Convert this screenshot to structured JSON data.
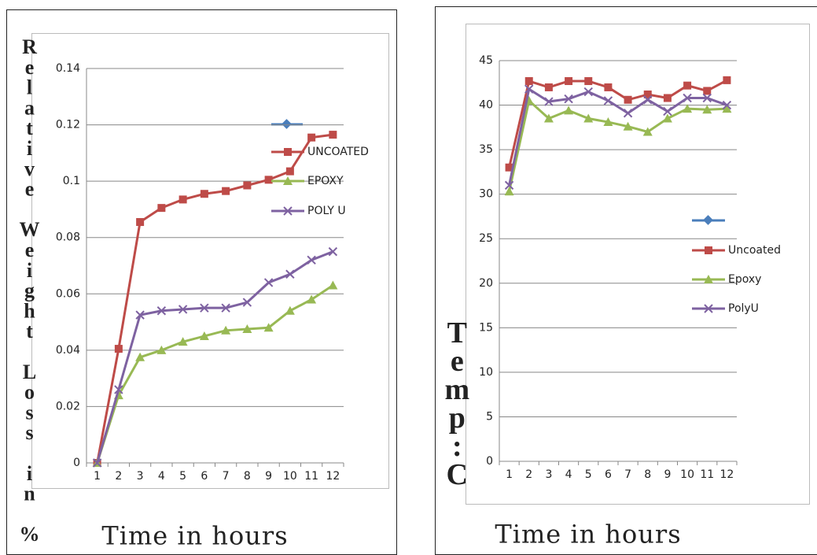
{
  "chart_data": [
    {
      "type": "line",
      "y_label": "Relative Weight Loss in %",
      "x_label": "Time in hours",
      "categories": [
        "1",
        "2",
        "3",
        "4",
        "5",
        "6",
        "7",
        "8",
        "9",
        "10",
        "11",
        "12"
      ],
      "ylim": [
        0,
        0.14
      ],
      "yticks": [
        0,
        0.02,
        0.04,
        0.06,
        0.08,
        0.1,
        0.12,
        0.14
      ],
      "grid": true,
      "series": [
        {
          "name": "UNCOATED",
          "color": "#be4b48",
          "marker": "square",
          "values": [
            0,
            0.0405,
            0.0855,
            0.0905,
            0.0935,
            0.0955,
            0.0965,
            0.0985,
            0.1005,
            0.1035,
            0.1155,
            0.1165
          ]
        },
        {
          "name": "EPOXY",
          "color": "#98b954",
          "marker": "triangle",
          "values": [
            0,
            0.024,
            0.0375,
            0.04,
            0.043,
            0.045,
            0.047,
            0.0475,
            0.048,
            0.054,
            0.058,
            0.063
          ]
        },
        {
          "name": "POLY U",
          "color": "#7e62a1",
          "marker": "x",
          "values": [
            0,
            0.026,
            0.0525,
            0.054,
            0.0545,
            0.055,
            0.055,
            0.057,
            0.064,
            0.067,
            0.072,
            0.075
          ]
        }
      ]
    },
    {
      "type": "line",
      "y_label": "Temp:C",
      "x_label": "Time in hours",
      "categories": [
        "1",
        "2",
        "3",
        "4",
        "5",
        "6",
        "7",
        "8",
        "9",
        "10",
        "11",
        "12"
      ],
      "ylim": [
        0,
        45
      ],
      "yticks": [
        0,
        5,
        10,
        15,
        20,
        25,
        30,
        35,
        40,
        45
      ],
      "grid": true,
      "series": [
        {
          "name": "Uncoated",
          "color": "#be4b48",
          "marker": "square",
          "values": [
            33,
            42.7,
            42,
            42.7,
            42.7,
            42,
            40.6,
            41.2,
            40.8,
            42.2,
            41.6,
            42.8
          ]
        },
        {
          "name": "Epoxy",
          "color": "#98b954",
          "marker": "triangle",
          "values": [
            30.3,
            40.5,
            38.5,
            39.4,
            38.5,
            38.1,
            37.6,
            37,
            38.5,
            39.6,
            39.5,
            39.6
          ]
        },
        {
          "name": "PolyU",
          "color": "#7e62a1",
          "marker": "x",
          "values": [
            31,
            41.8,
            40.4,
            40.7,
            41.5,
            40.5,
            39.1,
            40.6,
            39.3,
            40.8,
            40.8,
            40
          ]
        }
      ]
    }
  ]
}
